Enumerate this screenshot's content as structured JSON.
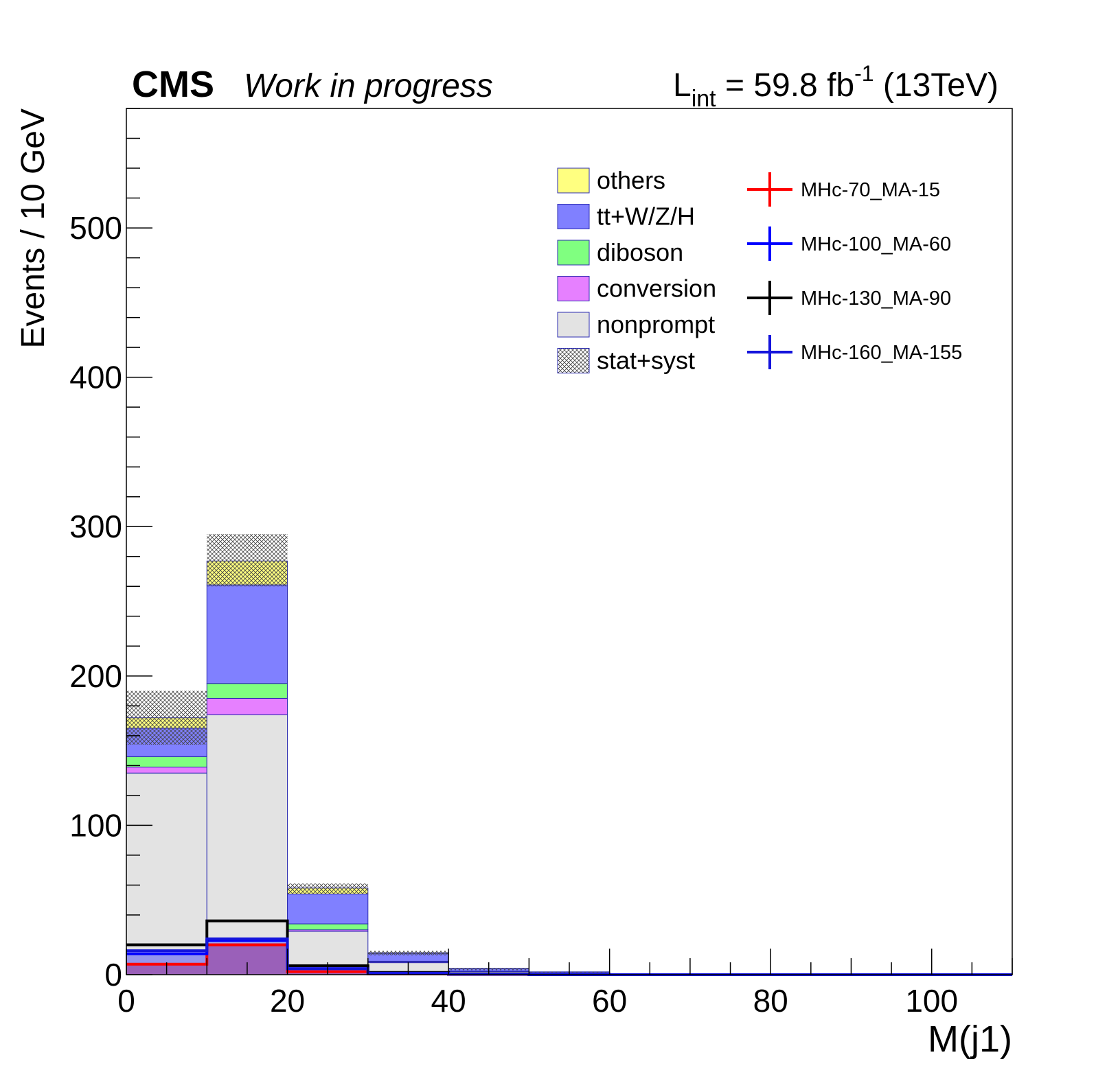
{
  "header": {
    "experiment": "CMS",
    "status": "Work in progress",
    "lumi_L": "L",
    "lumi_sub": "int",
    "lumi_value": " = 59.8 fb",
    "lumi_sup": "-1",
    "lumi_energy": " (13TeV)"
  },
  "chart_data": {
    "type": "bar",
    "stacked": true,
    "bin_width": 10,
    "x": [
      0,
      10,
      20,
      30,
      40,
      50,
      60,
      70,
      80,
      90,
      100
    ],
    "xlim": [
      0,
      110
    ],
    "ylim": [
      0,
      580
    ],
    "xlabel": "M(j1)",
    "ylabel": "Events / 10 GeV",
    "xticks": [
      0,
      20,
      40,
      60,
      80,
      100
    ],
    "yticks": [
      0,
      100,
      200,
      300,
      400,
      500
    ],
    "legend_placement": "top-right",
    "grid": false,
    "series": [
      {
        "name": "nonprompt",
        "color": "#e3e3e3",
        "values": [
          135,
          174,
          29,
          8,
          2,
          1,
          0,
          0,
          0,
          0,
          0
        ]
      },
      {
        "name": "conversion",
        "color": "#e680ff",
        "values": [
          4,
          11,
          1,
          0.5,
          0.2,
          0,
          0,
          0,
          0,
          0,
          0
        ]
      },
      {
        "name": "diboson",
        "color": "#80ff80",
        "values": [
          7,
          10,
          4,
          0.5,
          0.2,
          0,
          0,
          0,
          0,
          0,
          0
        ]
      },
      {
        "name": "tt+W/Z/H",
        "color": "#8080ff",
        "values": [
          19,
          66,
          20,
          5,
          1.5,
          0.8,
          0,
          0,
          0,
          0,
          0
        ]
      },
      {
        "name": "others",
        "color": "#ffff80",
        "values": [
          7,
          16,
          4,
          0.7,
          0.3,
          0.1,
          0,
          0,
          0,
          0,
          0
        ]
      }
    ],
    "uncertainty": {
      "name": "stat+syst",
      "up": [
        190,
        295,
        61,
        16,
        4.5,
        2,
        0,
        0,
        0,
        0,
        0
      ],
      "down": [
        154,
        260,
        54,
        13,
        3,
        1.5,
        0,
        0,
        0,
        0,
        0
      ]
    },
    "signals": [
      {
        "name": "MHc-70_MA-15",
        "color": "#ff0000",
        "values": [
          7,
          20,
          2,
          0.5,
          0.2,
          0,
          0,
          0,
          0,
          0,
          0
        ]
      },
      {
        "name": "MHc-100_MA-60",
        "color": "#0000ff",
        "values": [
          14,
          23,
          4,
          1,
          0.3,
          0,
          0,
          0,
          0,
          0,
          0
        ]
      },
      {
        "name": "MHc-130_MA-90",
        "color": "#000000",
        "values": [
          20,
          36,
          6,
          1.5,
          0.5,
          0.2,
          0,
          0,
          0,
          0,
          0
        ]
      },
      {
        "name": "MHc-160_MA-155",
        "color": "#1414dc",
        "values": [
          16,
          24,
          4,
          1,
          0.3,
          0.1,
          0,
          0,
          0,
          0,
          0
        ]
      }
    ]
  }
}
